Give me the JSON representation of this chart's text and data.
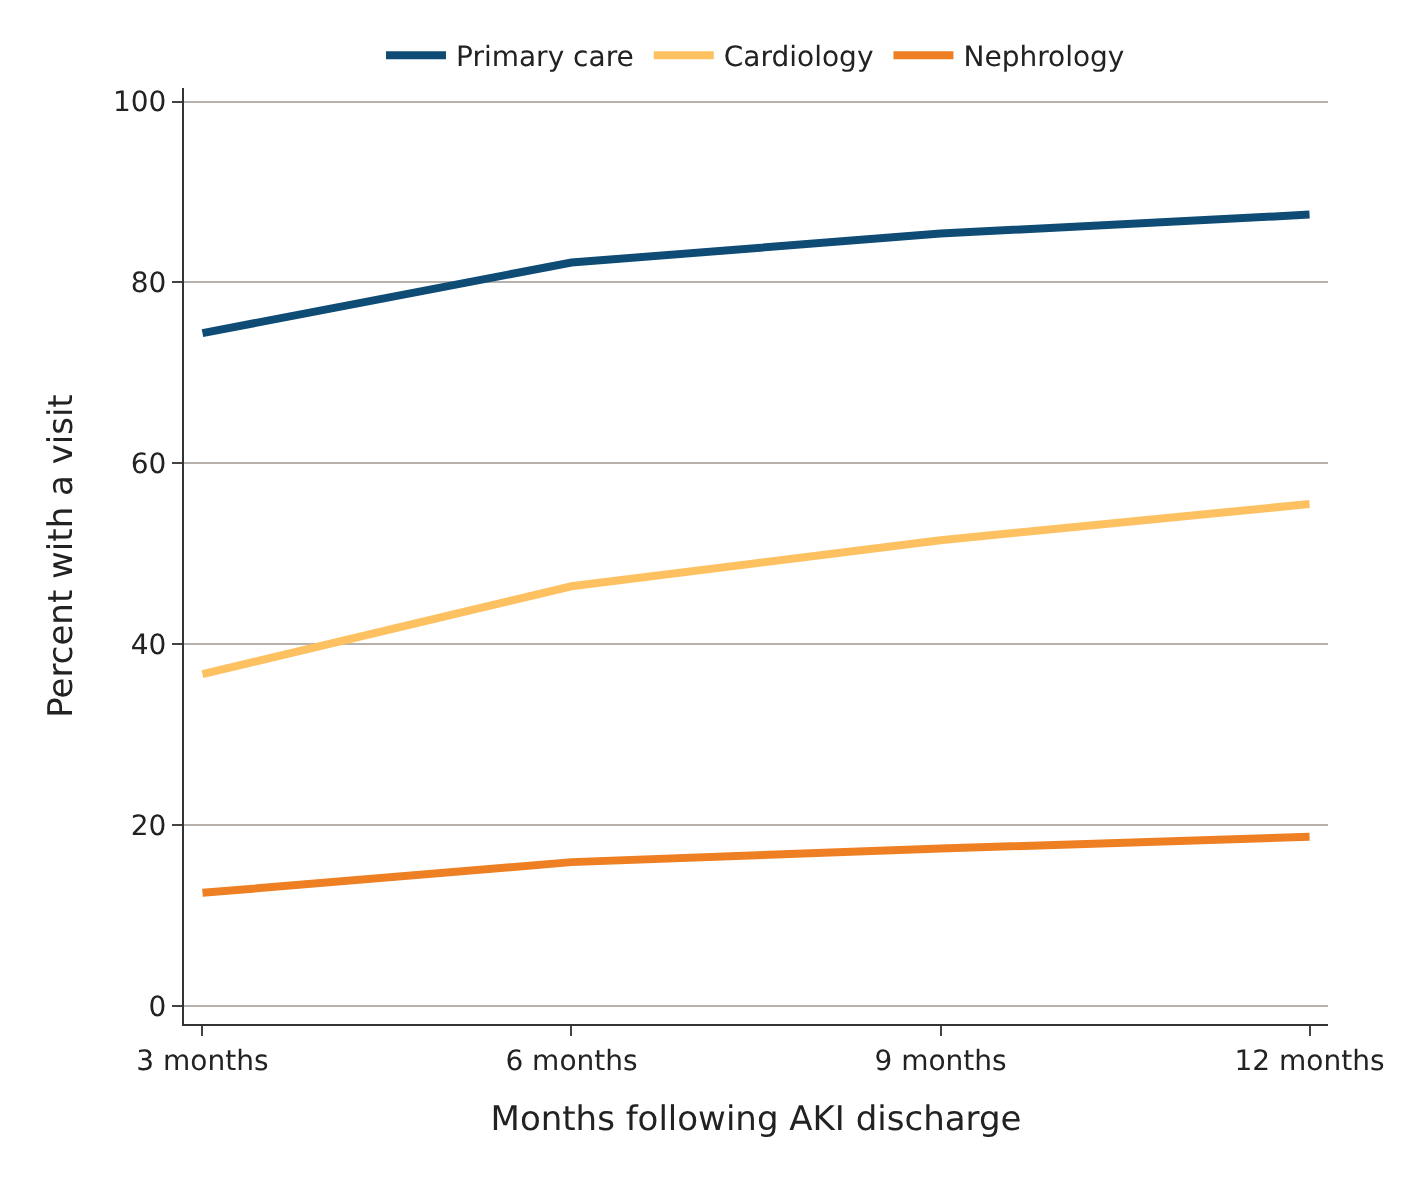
{
  "chart_data": {
    "type": "line",
    "xlabel": "Months following AKI discharge",
    "ylabel": "Percent with a visit",
    "categories": [
      "3 months",
      "6 months",
      "9 months",
      "12 months"
    ],
    "series": [
      {
        "name": "Primary care",
        "color": "#0f4c75",
        "values": [
          74.4,
          82.2,
          85.4,
          87.5
        ]
      },
      {
        "name": "Cardiology",
        "color": "#fdc161",
        "values": [
          36.7,
          46.4,
          51.5,
          55.5
        ]
      },
      {
        "name": "Nephrology",
        "color": "#ee7f22",
        "values": [
          12.5,
          15.9,
          17.4,
          18.7
        ]
      }
    ],
    "ylim": [
      -2,
      101.5
    ],
    "yticks": [
      0,
      20,
      40,
      60,
      80,
      100
    ],
    "grid": "y",
    "legend": "top",
    "marker": "none",
    "line_style": "solid"
  }
}
